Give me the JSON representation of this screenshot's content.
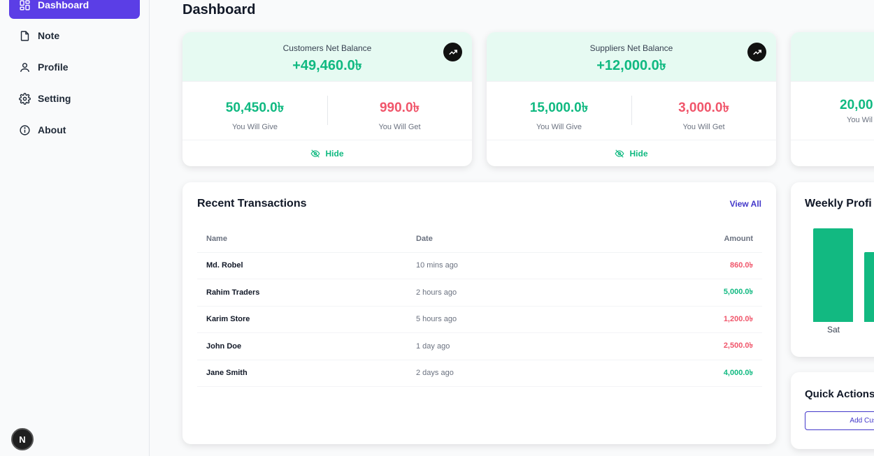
{
  "sidebar": {
    "items": [
      {
        "label": "Dashboard",
        "icon": "dashboard-icon"
      },
      {
        "label": "Note",
        "icon": "file-icon"
      },
      {
        "label": "Profile",
        "icon": "user-icon"
      },
      {
        "label": "Setting",
        "icon": "gear-icon"
      },
      {
        "label": "About",
        "icon": "info-icon"
      }
    ],
    "badge": "N"
  },
  "header": {
    "title": "Dashboard"
  },
  "balance_cards": [
    {
      "title": "Customers Net Balance",
      "net": "+49,460.0৳",
      "give": "50,450.0৳",
      "give_label": "You Will Give",
      "get": "990.0৳",
      "get_label": "You Will Get",
      "hide_label": "Hide"
    },
    {
      "title": "Suppliers Net Balance",
      "net": "+12,000.0৳",
      "give": "15,000.0৳",
      "give_label": "You Will Give",
      "get": "3,000.0৳",
      "get_label": "You Will Get",
      "hide_label": "Hide"
    },
    {
      "title": "",
      "net": "",
      "give": "20,00",
      "give_label": "You Wil",
      "get": "",
      "get_label": "",
      "hide_label": ""
    }
  ],
  "transactions": {
    "title": "Recent Transactions",
    "view_all": "View All",
    "columns": [
      "Name",
      "Date",
      "Amount"
    ],
    "rows": [
      {
        "name": "Md. Robel",
        "date": "10 mins ago",
        "amount": "860.0৳",
        "type": "neg"
      },
      {
        "name": "Rahim Traders",
        "date": "2 hours ago",
        "amount": "5,000.0৳",
        "type": "pos"
      },
      {
        "name": "Karim Store",
        "date": "5 hours ago",
        "amount": "1,200.0৳",
        "type": "neg"
      },
      {
        "name": "John Doe",
        "date": "1 day ago",
        "amount": "2,500.0৳",
        "type": "neg"
      },
      {
        "name": "Jane Smith",
        "date": "2 days ago",
        "amount": "4,000.0৳",
        "type": "pos"
      }
    ]
  },
  "weekly_profit": {
    "title": "Weekly Profi",
    "bars": [
      {
        "label": "Sat",
        "level": 1.0
      },
      {
        "label": "",
        "level": 0.75
      }
    ],
    "bar_color": "#12b981"
  },
  "quick_actions": {
    "title": "Quick Actions",
    "button_label": "Add Cust"
  },
  "colors": {
    "accent": "#5b3ee6",
    "positive": "#10b981",
    "negative": "#f0566b",
    "link": "#4338ca"
  }
}
